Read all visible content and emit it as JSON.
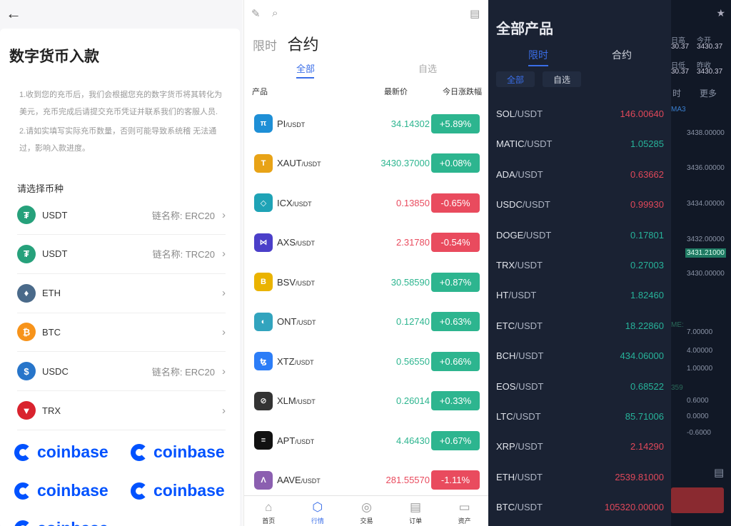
{
  "left": {
    "title": "数字货币入款",
    "notes": [
      "1.收到您的充币后，我们会根据您充的数字货币将其转化为美元，充币完成后请提交充币凭证并联系我们的客服人员.",
      "2.请如实填写实际充币数量，否则可能导致系统稽 无法通过，影响入款进度。"
    ],
    "select_label": "请选择币种",
    "coins": [
      {
        "name": "USDT",
        "chain": "链名称: ERC20",
        "color": "#26a17b",
        "glyph": "₮"
      },
      {
        "name": "USDT",
        "chain": "链名称: TRC20",
        "color": "#26a17b",
        "glyph": "₮"
      },
      {
        "name": "ETH",
        "chain": "",
        "color": "#4a6a8a",
        "glyph": "♦"
      },
      {
        "name": "BTC",
        "chain": "",
        "color": "#f7931a",
        "glyph": "₿"
      },
      {
        "name": "USDC",
        "chain": "链名称: ERC20",
        "color": "#2775ca",
        "glyph": "$"
      },
      {
        "name": "TRX",
        "chain": "",
        "color": "#d9232e",
        "glyph": "▼"
      }
    ],
    "logo_text": "coinbase"
  },
  "mid": {
    "tabs": [
      "限时",
      "合约"
    ],
    "subtabs": [
      "全部",
      "自选"
    ],
    "headers": [
      "产品",
      "最新价",
      "今日涨跌幅"
    ],
    "rows": [
      {
        "base": "PI",
        "quote": "/USDT",
        "price": "34.14302",
        "change": "+5.89%",
        "up": true,
        "color": "#1e8fd6",
        "glyph": "π"
      },
      {
        "base": "XAUT",
        "quote": "/USDT",
        "price": "3430.37000",
        "change": "+0.08%",
        "up": true,
        "color": "#e8a317",
        "glyph": "T"
      },
      {
        "base": "ICX",
        "quote": "/USDT",
        "price": "0.13850",
        "change": "-0.65%",
        "up": false,
        "color": "#1fa3b6",
        "glyph": "◇"
      },
      {
        "base": "AXS",
        "quote": "/USDT",
        "price": "2.31780",
        "change": "-0.54%",
        "up": false,
        "color": "#4b3fc9",
        "glyph": "⋈"
      },
      {
        "base": "BSV",
        "quote": "/USDT",
        "price": "30.58590",
        "change": "+0.87%",
        "up": true,
        "color": "#eab300",
        "glyph": "B"
      },
      {
        "base": "ONT",
        "quote": "/USDT",
        "price": "0.12740",
        "change": "+0.63%",
        "up": true,
        "color": "#32a4be",
        "glyph": "◐"
      },
      {
        "base": "XTZ",
        "quote": "/USDT",
        "price": "0.56550",
        "change": "+0.66%",
        "up": true,
        "color": "#2c7df7",
        "glyph": "ꜩ"
      },
      {
        "base": "XLM",
        "quote": "/USDT",
        "price": "0.26014",
        "change": "+0.33%",
        "up": true,
        "color": "#333333",
        "glyph": "⊘"
      },
      {
        "base": "APT",
        "quote": "/USDT",
        "price": "4.46430",
        "change": "+0.67%",
        "up": true,
        "color": "#111111",
        "glyph": "≡"
      },
      {
        "base": "AAVE",
        "quote": "/USDT",
        "price": "281.55570",
        "change": "-1.11%",
        "up": false,
        "color": "#8b5fb0",
        "glyph": "Λ"
      }
    ],
    "nav": [
      {
        "label": "首页",
        "icon": "home-icon",
        "glyph": "⌂"
      },
      {
        "label": "行情",
        "icon": "market-icon",
        "glyph": "⬡"
      },
      {
        "label": "交易",
        "icon": "trade-icon",
        "glyph": "◎"
      },
      {
        "label": "订单",
        "icon": "order-icon",
        "glyph": "▤"
      },
      {
        "label": "资产",
        "icon": "wallet-icon",
        "glyph": "▭"
      }
    ],
    "active_nav": 1
  },
  "right": {
    "title": "全部产品",
    "tabs": [
      "限时",
      "合约"
    ],
    "chips": [
      "全部",
      "自选"
    ],
    "rows": [
      {
        "base": "SOL",
        "quote": "/USDT",
        "price": "146.00640",
        "up": false
      },
      {
        "base": "MATIC",
        "quote": "/USDT",
        "price": "1.05285",
        "up": true
      },
      {
        "base": "ADA",
        "quote": "/USDT",
        "price": "0.63662",
        "up": false
      },
      {
        "base": "USDC",
        "quote": "/USDT",
        "price": "0.99930",
        "up": false
      },
      {
        "base": "DOGE",
        "quote": "/USDT",
        "price": "0.17801",
        "up": true
      },
      {
        "base": "TRX",
        "quote": "/USDT",
        "price": "0.27003",
        "up": true
      },
      {
        "base": "HT",
        "quote": "/USDT",
        "price": "1.82460",
        "up": true
      },
      {
        "base": "ETC",
        "quote": "/USDT",
        "price": "18.22860",
        "up": true
      },
      {
        "base": "BCH",
        "quote": "/USDT",
        "price": "434.06000",
        "up": true
      },
      {
        "base": "EOS",
        "quote": "/USDT",
        "price": "0.68522",
        "up": true
      },
      {
        "base": "LTC",
        "quote": "/USDT",
        "price": "85.71006",
        "up": true
      },
      {
        "base": "XRP",
        "quote": "/USDT",
        "price": "2.14290",
        "up": false
      },
      {
        "base": "ETH",
        "quote": "/USDT",
        "price": "2539.81000",
        "up": false
      },
      {
        "base": "BTC",
        "quote": "/USDT",
        "price": "105320.00000",
        "up": false
      }
    ],
    "background": {
      "stats": [
        {
          "label": "日高",
          "value": "30.37"
        },
        {
          "label": "今开",
          "value": "3430.37"
        },
        {
          "label": "日低",
          "value": "30.37"
        },
        {
          "label": "昨收",
          "value": "3430.37"
        }
      ],
      "interval": "时",
      "more": "更多",
      "ma": "MA3",
      "price_ticks": [
        "3438.00000",
        "3436.00000",
        "3434.00000",
        "3432.00000",
        "3430.00000"
      ],
      "current_price": "3431.21000",
      "vol_label": "ME:",
      "vol_ticks": [
        "7.00000",
        "4.00000",
        "1.00000"
      ],
      "macd_label": "359",
      "macd_ticks": [
        "0.6000",
        "0.0000",
        "-0.6000"
      ]
    }
  },
  "colors": {
    "up": "#2db58f",
    "down": "#e94b5e",
    "accent": "#3a6ee8",
    "dark_up": "#27b39a",
    "dark_down": "#e0485a"
  }
}
